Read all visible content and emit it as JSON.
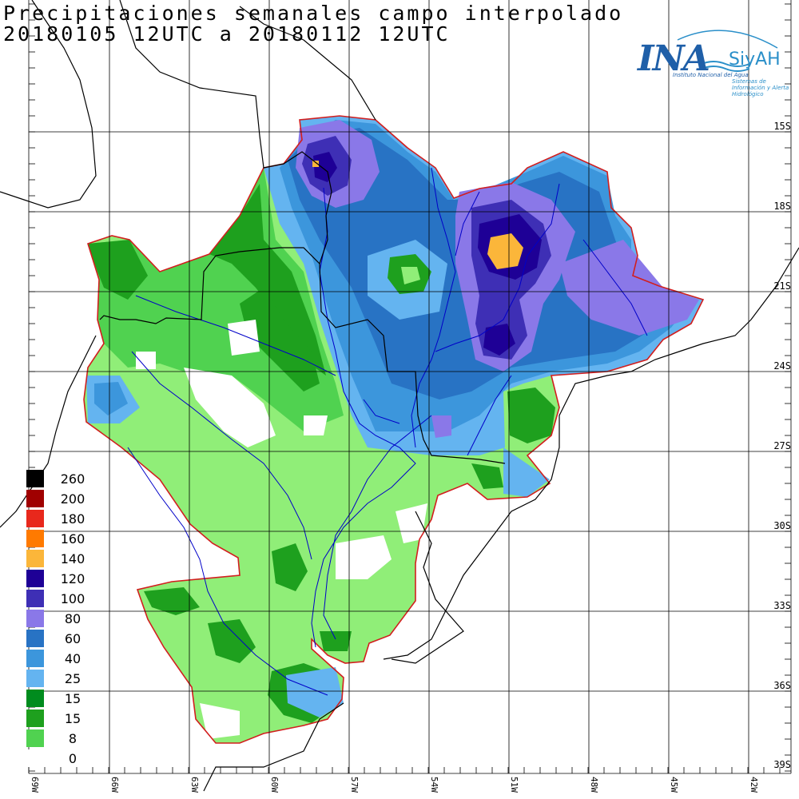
{
  "title": {
    "line1": "Precipitaciones semanales campo interpolado",
    "line2": "20180105 12UTC a 20180112 12UTC"
  },
  "logo": {
    "name": "INA",
    "siyah": "SiyAH",
    "subtitle": "Instituto Nacional del Agua",
    "subtitle2": "Sistemas de Información y Alerta Hidrológico"
  },
  "latitude_labels": [
    "15S",
    "18S",
    "21S",
    "24S",
    "27S",
    "30S",
    "33S",
    "36S",
    "39S"
  ],
  "longitude_labels": [
    "69W",
    "66W",
    "63W",
    "60W",
    "57W",
    "54W",
    "51W",
    "48W",
    "45W",
    "42W"
  ],
  "legend": [
    {
      "label": "260",
      "color": "#000000"
    },
    {
      "label": "200",
      "color": "#a00000"
    },
    {
      "label": "180",
      "color": "#e8281c"
    },
    {
      "label": "160",
      "color": "#ff7a00"
    },
    {
      "label": "140",
      "color": "#fbb63a"
    },
    {
      "label": "120",
      "color": "#1e0096"
    },
    {
      "label": "100",
      "color": "#3e2fb5"
    },
    {
      "label": "80",
      "color": "#8a78e8"
    },
    {
      "label": "60",
      "color": "#2873c4"
    },
    {
      "label": "40",
      "color": "#3c96dc"
    },
    {
      "label": "25",
      "color": "#64b4f0"
    },
    {
      "label": "15",
      "color": "#008c1e"
    },
    {
      "label": "15",
      "color": "#1ea01e"
    },
    {
      "label": "8",
      "color": "#50d250"
    },
    {
      "label": "0",
      "color": "#ffffff"
    }
  ],
  "map_colors": {
    "basin_outline": "#d21e1e",
    "rivers": "#0000c8",
    "borders": "#000000",
    "grid": "#000000"
  }
}
